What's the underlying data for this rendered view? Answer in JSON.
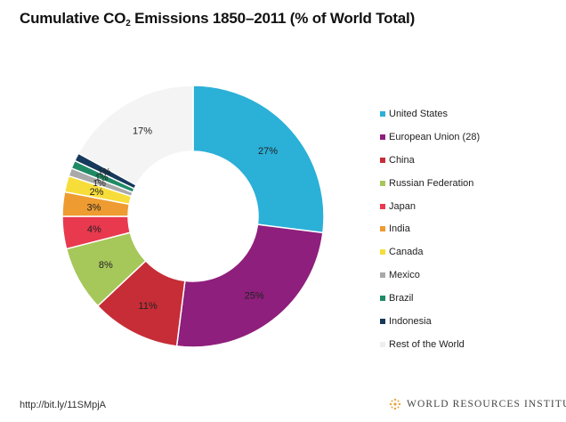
{
  "title": {
    "prefix": "Cumulative CO",
    "subscript": "2",
    "suffix": " Emissions 1850–2011 (% of World Total)"
  },
  "chart_data": {
    "type": "pie",
    "donut": true,
    "title": "Cumulative CO2 Emissions 1850–2011 (% of World Total)",
    "legend_position": "right",
    "categories": [
      "United States",
      "European Union (28)",
      "China",
      "Russian Federation",
      "Japan",
      "India",
      "Canada",
      "Mexico",
      "Brazil",
      "Indonesia",
      "Rest of the World"
    ],
    "values": [
      27,
      25,
      11,
      8,
      4,
      3,
      2,
      1,
      1,
      1,
      17
    ],
    "labels": [
      "27%",
      "25%",
      "11%",
      "8%",
      "4%",
      "3%",
      "2%",
      "1%",
      "1%",
      "1%",
      "17%"
    ],
    "colors": [
      "#2bb0d8",
      "#8e1f7c",
      "#c62d36",
      "#a6c75a",
      "#e8394f",
      "#ee9b31",
      "#f7dd3a",
      "#a9a9a9",
      "#1f8b66",
      "#163a5c",
      "#f4f4f4"
    ]
  },
  "footer": {
    "url": "http://bit.ly/11SMpjA",
    "brand": "WORLD RESOURCES INSTITUTE"
  },
  "icons": {
    "brand_logo": "wri-logo-icon"
  }
}
